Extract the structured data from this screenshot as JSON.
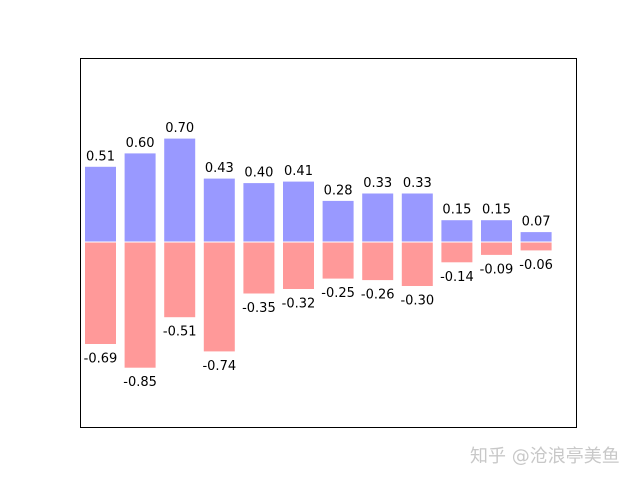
{
  "watermark": "知乎 @沧浪亭美鱼",
  "chart_data": {
    "type": "bar",
    "title": "",
    "xlabel": "",
    "ylabel": "",
    "grid": false,
    "legend": "none",
    "ylim": [
      -1.25,
      1.25
    ],
    "series": [
      {
        "color": "#9999ff",
        "values": [
          0.51,
          0.6,
          0.7,
          0.43,
          0.4,
          0.41,
          0.28,
          0.33,
          0.33,
          0.15,
          0.15,
          0.07
        ],
        "labels": [
          "0.51",
          "0.60",
          "0.70",
          "0.43",
          "0.40",
          "0.41",
          "0.28",
          "0.33",
          "0.33",
          "0.15",
          "0.15",
          "0.07"
        ]
      },
      {
        "color": "#ff9999",
        "values": [
          -0.69,
          -0.85,
          -0.51,
          -0.74,
          -0.35,
          -0.32,
          -0.25,
          -0.26,
          -0.3,
          -0.14,
          -0.09,
          -0.06
        ],
        "labels": [
          "-0.69",
          "-0.85",
          "-0.51",
          "-0.74",
          "-0.35",
          "-0.32",
          "-0.25",
          "-0.26",
          "-0.30",
          "-0.14",
          "-0.09",
          "-0.06"
        ]
      }
    ]
  }
}
